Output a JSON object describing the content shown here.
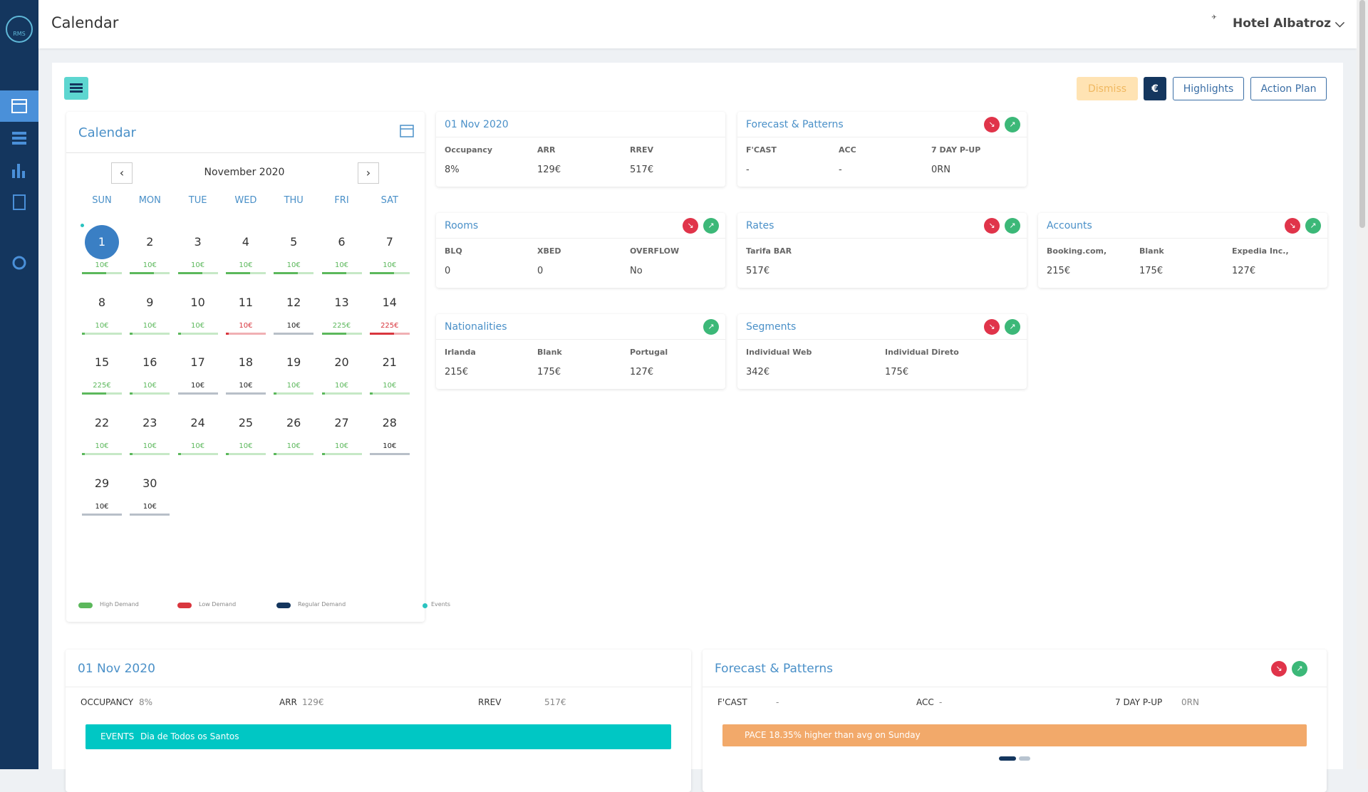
{
  "header": {
    "title": "Calendar",
    "logo_text": "RMS",
    "hotel": "Hotel Albatroz"
  },
  "toolbar": {
    "dismiss": "Dismiss",
    "currency": "€",
    "highlights": "Highlights",
    "action_plan": "Action Plan"
  },
  "calendar": {
    "title": "Calendar",
    "month": "November 2020",
    "weekdays": [
      "SUN",
      "MON",
      "TUE",
      "WED",
      "THU",
      "FRI",
      "SAT"
    ],
    "days": [
      {
        "day": 1,
        "price": "10€",
        "demand": "high",
        "event": true
      },
      {
        "day": 2,
        "price": "10€",
        "demand": "high"
      },
      {
        "day": 3,
        "price": "10€",
        "demand": "high"
      },
      {
        "day": 4,
        "price": "10€",
        "demand": "high"
      },
      {
        "day": 5,
        "price": "10€",
        "demand": "high"
      },
      {
        "day": 6,
        "price": "10€",
        "demand": "high"
      },
      {
        "day": 7,
        "price": "10€",
        "demand": "high"
      },
      {
        "day": 8,
        "price": "10€",
        "demand": "high"
      },
      {
        "day": 9,
        "price": "10€",
        "demand": "high"
      },
      {
        "day": 10,
        "price": "10€",
        "demand": "high"
      },
      {
        "day": 11,
        "price": "10€",
        "demand": "low"
      },
      {
        "day": 12,
        "price": "10€",
        "demand": "regular"
      },
      {
        "day": 13,
        "price": "225€",
        "demand": "high"
      },
      {
        "day": 14,
        "price": "225€",
        "demand": "low"
      },
      {
        "day": 15,
        "price": "225€",
        "demand": "high"
      },
      {
        "day": 16,
        "price": "10€",
        "demand": "high"
      },
      {
        "day": 17,
        "price": "10€",
        "demand": "regular"
      },
      {
        "day": 18,
        "price": "10€",
        "demand": "regular"
      },
      {
        "day": 19,
        "price": "10€",
        "demand": "high"
      },
      {
        "day": 20,
        "price": "10€",
        "demand": "high"
      },
      {
        "day": 21,
        "price": "10€",
        "demand": "high"
      },
      {
        "day": 22,
        "price": "10€",
        "demand": "high"
      },
      {
        "day": 23,
        "price": "10€",
        "demand": "high"
      },
      {
        "day": 24,
        "price": "10€",
        "demand": "high"
      },
      {
        "day": 25,
        "price": "10€",
        "demand": "high"
      },
      {
        "day": 26,
        "price": "10€",
        "demand": "high"
      },
      {
        "day": 27,
        "price": "10€",
        "demand": "high"
      },
      {
        "day": 28,
        "price": "10€",
        "demand": "regular"
      },
      {
        "day": 29,
        "price": "10€",
        "demand": "regular"
      },
      {
        "day": 30,
        "price": "10€",
        "demand": "regular"
      }
    ],
    "legend": [
      {
        "label": "High Demand",
        "demand": "high"
      },
      {
        "label": "Low Demand",
        "demand": "low"
      },
      {
        "label": "Regular Demand",
        "demand": "regular"
      },
      {
        "label": "Events",
        "demand": "event"
      }
    ]
  },
  "cards": [
    {
      "title": "01 Nov 2020",
      "trends": [],
      "fields": [
        {
          "label": "Occupancy",
          "value": "8%"
        },
        {
          "label": "ARR",
          "value": "129€"
        },
        {
          "label": "RREV",
          "value": "517€"
        }
      ]
    },
    {
      "title": "Forecast & Patterns",
      "trends": [
        "down",
        "up"
      ],
      "fields": [
        {
          "label": "F'CAST",
          "value": "-"
        },
        {
          "label": "ACC",
          "value": "-"
        },
        {
          "label": "7 DAY P-UP",
          "value": "0RN"
        }
      ]
    },
    {
      "title": "Rooms",
      "trends": [
        "down",
        "up"
      ],
      "fields": [
        {
          "label": "BLQ",
          "value": "0"
        },
        {
          "label": "XBED",
          "value": "0"
        },
        {
          "label": "OVERFLOW",
          "value": "No"
        }
      ]
    },
    {
      "title": "Rates",
      "trends": [
        "down",
        "up"
      ],
      "fields": [
        {
          "label": "Tarifa BAR",
          "value": "517€"
        }
      ]
    },
    {
      "title": "Accounts",
      "trends": [
        "down",
        "up"
      ],
      "fields": [
        {
          "label": "Booking.com,",
          "value": "215€"
        },
        {
          "label": "Blank",
          "value": "175€"
        },
        {
          "label": "Expedia Inc.,",
          "value": "127€"
        }
      ]
    },
    {
      "title": "Nationalities",
      "trends": [
        "up"
      ],
      "fields": [
        {
          "label": "Irlanda",
          "value": "215€"
        },
        {
          "label": "Blank",
          "value": "175€"
        },
        {
          "label": "Portugal",
          "value": "127€"
        }
      ]
    },
    {
      "title": "Segments",
      "trends": [
        "down",
        "up"
      ],
      "fields": [
        {
          "label": "Individual Web",
          "value": "342€"
        },
        {
          "label": "Individual Direto",
          "value": "175€"
        }
      ]
    }
  ],
  "panels": [
    {
      "title": "01 Nov 2020",
      "trends": [],
      "fields": [
        {
          "label": "OCCUPANCY",
          "value": "8%"
        },
        {
          "label": "ARR",
          "value": "129€"
        },
        {
          "label": "RREV",
          "value": "517€"
        }
      ],
      "banner": {
        "label": "EVENTS",
        "text": "Dia de Todos os Santos"
      }
    },
    {
      "title": "Forecast & Patterns",
      "trends": [
        "down",
        "up"
      ],
      "fields": [
        {
          "label": "F'CAST",
          "value": "-"
        },
        {
          "label": "ACC",
          "value": "-"
        },
        {
          "label": "7 DAY P-UP",
          "value": "0RN"
        }
      ],
      "banner": {
        "text": "PACE 18.35% higher than avg on Sunday"
      }
    }
  ]
}
